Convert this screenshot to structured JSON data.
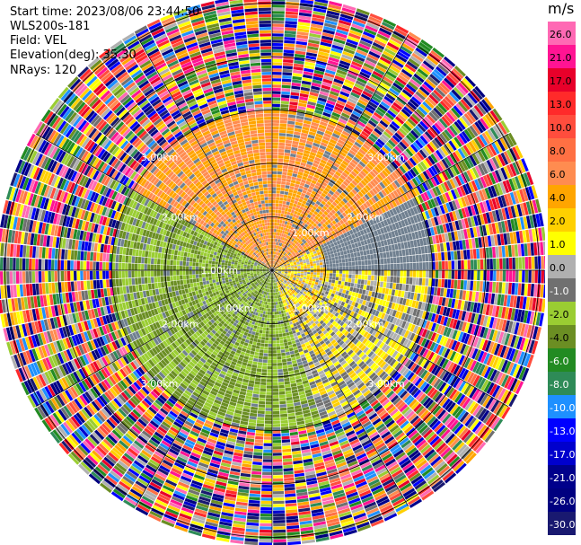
{
  "header": {
    "start_time": "Start time: 2023/08/06 23:44:50",
    "instrument": "WLS200s-181",
    "field": "Field: VEL",
    "elevation": "Elevation(deg): 35.30",
    "nrays": "NRays: 120"
  },
  "colorbar": {
    "unit": "m/s",
    "ticks": [
      "26.0",
      "21.0",
      "17.0",
      "13.0",
      "10.0",
      "8.0",
      "6.0",
      "4.0",
      "2.0",
      "1.0",
      "0.0",
      "-1.0",
      "-2.0",
      "-4.0",
      "-6.0",
      "-8.0",
      "-10.0",
      "-13.0",
      "-17.0",
      "-21.0",
      "-26.0",
      "-30.0"
    ],
    "colors": [
      "#ff69b4",
      "#ff1493",
      "#e8002a",
      "#ff2a2a",
      "#ff4d3d",
      "#ff7043",
      "#ff8c50",
      "#ffa500",
      "#ffd000",
      "#ffff00",
      "#b0b0b0",
      "#707070",
      "#9acd32",
      "#6b8e23",
      "#228b22",
      "#2e8b57",
      "#1e90ff",
      "#0000ff",
      "#0000cd",
      "#00008b",
      "#000080",
      "#191970"
    ]
  },
  "chart_data": {
    "type": "heatmap",
    "projection": "polar PPI",
    "nrays": 120,
    "range_rings_km": [
      1.0,
      2.0,
      3.0
    ],
    "range_ring_labels": [
      "1.00km",
      "2.00km",
      "3.00km"
    ],
    "outer_labels": [
      "3.00km",
      "3.00km",
      "3.00km",
      "3.00km",
      "2.00km",
      "2.00km",
      "2.00km",
      "2.00km"
    ],
    "max_range_km": 5.1,
    "sectors": [
      {
        "from_deg": -60,
        "to_deg": 60,
        "inner_km": 0.0,
        "outer_km": 3.0,
        "dominant_velocity_ms": 4.0
      },
      {
        "from_deg": 60,
        "to_deg": 160,
        "inner_km": 0.0,
        "outer_km": 1.0,
        "dominant_velocity_ms": 1.0
      },
      {
        "from_deg": 160,
        "to_deg": 300,
        "inner_km": 0.0,
        "outer_km": 3.0,
        "dominant_velocity_ms": -4.0
      },
      {
        "from_deg": 90,
        "to_deg": 250,
        "inner_km": 1.0,
        "outer_km": 3.0,
        "dominant_velocity_ms": 0.0
      }
    ],
    "noise_beyond_km": 3.0
  }
}
